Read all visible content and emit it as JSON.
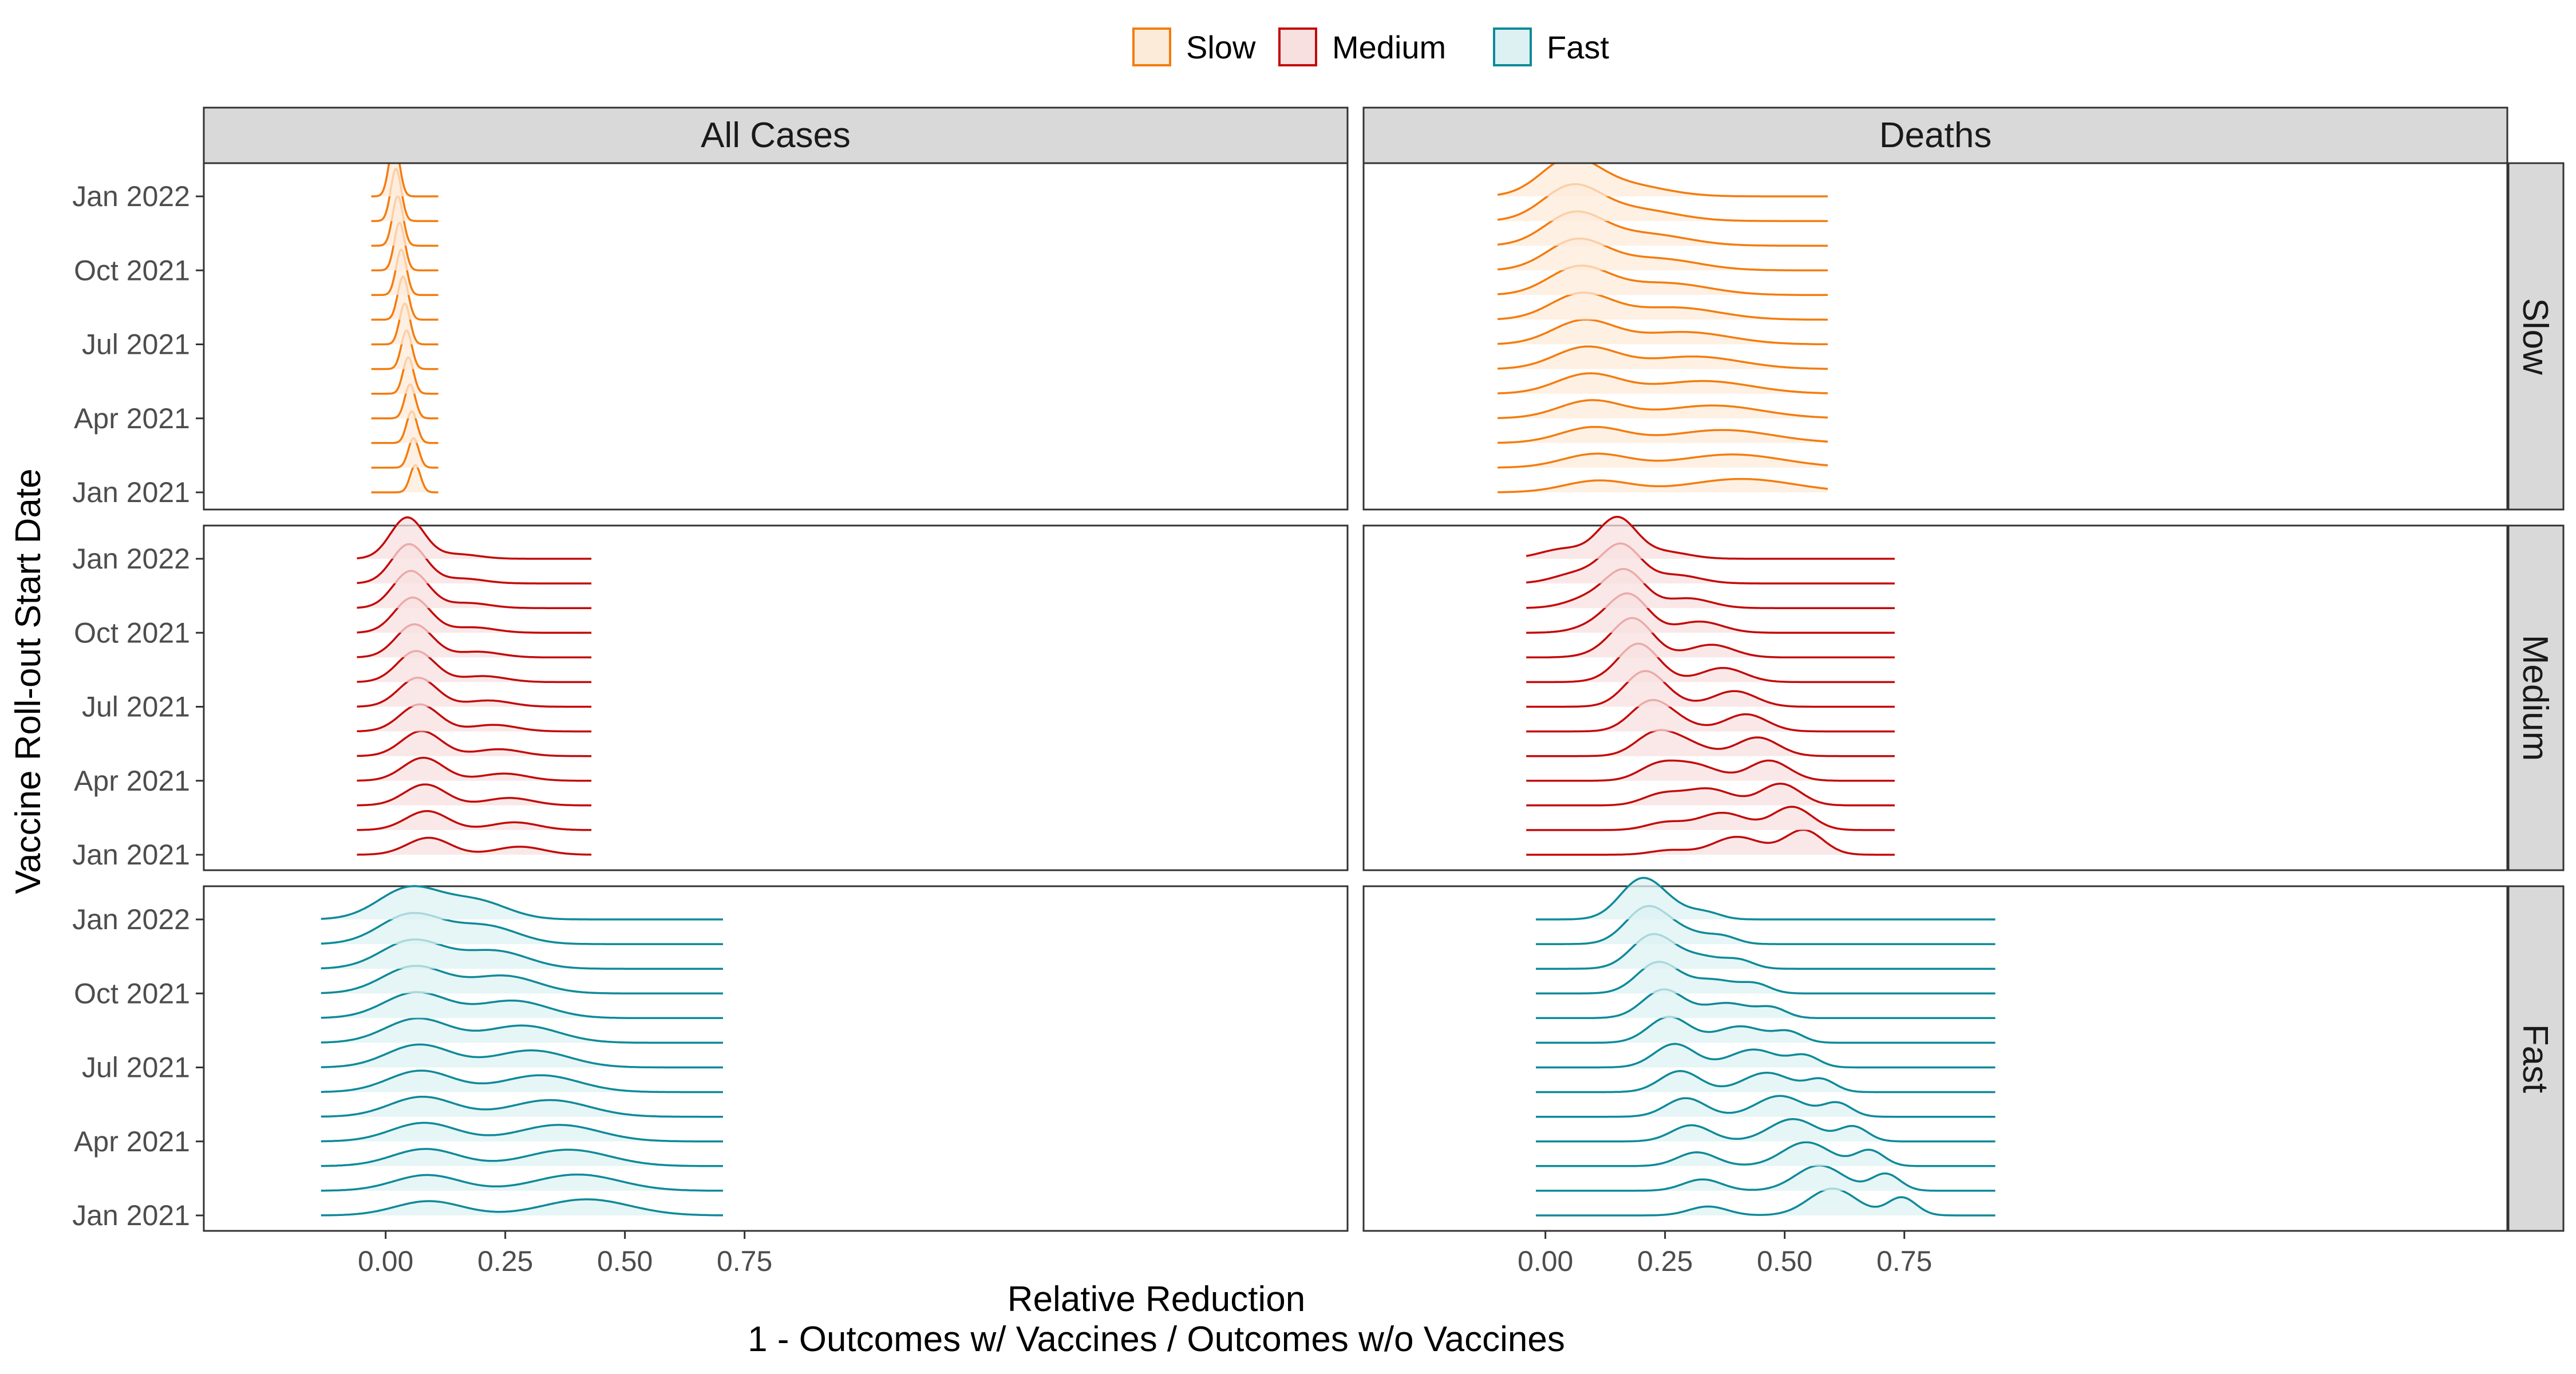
{
  "chart_data": {
    "type": "ridgeline",
    "facet_columns": [
      "All Cases",
      "Deaths"
    ],
    "facet_rows": [
      "Slow",
      "Medium",
      "Fast"
    ],
    "legend": {
      "position": "top",
      "entries": [
        {
          "label": "Slow",
          "color": "#F47C0E",
          "fill": "#FDEBDA"
        },
        {
          "label": "Medium",
          "color": "#C30A0A",
          "fill": "#F8E0E0"
        },
        {
          "label": "Fast",
          "color": "#0E8A99",
          "fill": "#DDF1F3"
        }
      ]
    },
    "x_axis": {
      "title": "Relative Reduction",
      "subtitle": "1 - Outcomes w/ Vaccines / Outcomes w/o Vaccines",
      "range": [
        -0.38,
        2.01
      ],
      "ticks": [
        0.0,
        0.25,
        0.5,
        0.75
      ],
      "tick_labels": [
        "0.00",
        "0.25",
        "0.50",
        "0.75"
      ]
    },
    "y_axis": {
      "title": "Vaccine Roll-out Start Date",
      "ridge_dates": [
        "2021-01-01",
        "2021-02-01",
        "2021-03-01",
        "2021-04-01",
        "2021-05-01",
        "2021-06-01",
        "2021-07-01",
        "2021-08-01",
        "2021-09-01",
        "2021-10-01",
        "2021-11-01",
        "2021-12-01",
        "2022-01-01"
      ],
      "tick_labels": [
        "Jan 2021",
        "Apr 2021",
        "Jul 2021",
        "Oct 2021",
        "Jan 2022"
      ]
    },
    "panels": [
      {
        "column": "All Cases",
        "row": "Slow",
        "x_extent": [
          -0.03,
          0.11
        ],
        "peaks": [
          {
            "start": [
              0.062,
              0.011,
              0.5
            ],
            "end": [
              0.018,
              0.011,
              1.0
            ]
          }
        ]
      },
      {
        "column": "All Cases",
        "row": "Medium",
        "x_extent": [
          -0.06,
          0.43
        ],
        "peaks": [
          {
            "start": [
              0.09,
              0.045,
              0.38
            ],
            "end": [
              0.045,
              0.035,
              0.92
            ]
          },
          {
            "start": [
              0.28,
              0.05,
              0.18
            ],
            "end": [
              0.15,
              0.045,
              0.1
            ]
          }
        ]
      },
      {
        "column": "All Cases",
        "row": "Fast",
        "x_extent": [
          -0.135,
          0.705
        ],
        "peaks": [
          {
            "start": [
              0.09,
              0.07,
              0.32
            ],
            "end": [
              0.05,
              0.065,
              0.7
            ]
          },
          {
            "start": [
              0.42,
              0.09,
              0.36
            ],
            "end": [
              0.19,
              0.065,
              0.4
            ]
          }
        ]
      },
      {
        "column": "Deaths",
        "row": "Slow",
        "x_extent": [
          -0.1,
          0.59
        ],
        "peaks": [
          {
            "start": [
              0.11,
              0.07,
              0.26
            ],
            "end": [
              0.05,
              0.06,
              0.8
            ]
          },
          {
            "start": [
              0.41,
              0.11,
              0.3
            ],
            "end": [
              0.17,
              0.08,
              0.25
            ]
          }
        ]
      },
      {
        "column": "Deaths",
        "row": "Medium",
        "x_extent": [
          -0.04,
          0.73
        ],
        "peaks": [
          {
            "start": [
              0.26,
              0.04,
              0.1
            ],
            "end": [
              0.15,
              0.04,
              0.9
            ]
          },
          {
            "start": [
              0.4,
              0.05,
              0.4
            ],
            "end": [
              0.04,
              0.05,
              0.22
            ]
          },
          {
            "start": [
              0.54,
              0.04,
              0.55
            ],
            "end": [
              0.25,
              0.05,
              0.15
            ]
          }
        ]
      },
      {
        "column": "Deaths",
        "row": "Fast",
        "x_extent": [
          -0.02,
          0.94
        ],
        "peaks": [
          {
            "start": [
              0.34,
              0.04,
              0.2
            ],
            "end": [
              0.2,
              0.045,
              0.85
            ]
          },
          {
            "start": [
              0.6,
              0.05,
              0.6
            ],
            "end": [
              0.27,
              0.05,
              0.2
            ]
          },
          {
            "start": [
              0.745,
              0.03,
              0.4
            ],
            "end": [
              0.34,
              0.03,
              0.1
            ]
          }
        ]
      }
    ]
  }
}
